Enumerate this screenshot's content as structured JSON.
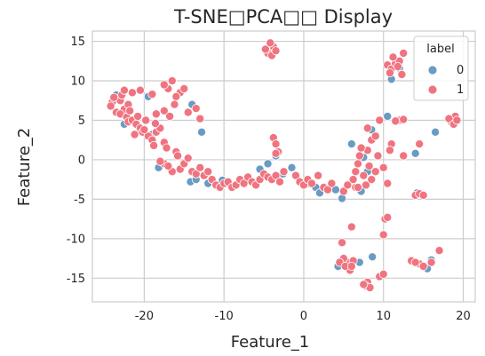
{
  "chart_data": {
    "type": "scatter",
    "title": "T-SNE□PCA□□ Display",
    "xlabel": "Feature_1",
    "ylabel": "Feature_2",
    "xlim": [
      -26.5,
      21.5
    ],
    "ylim": [
      -18,
      16.3
    ],
    "xticks": [
      -20,
      -10,
      0,
      10,
      20
    ],
    "yticks": [
      -15,
      -10,
      -5,
      0,
      5,
      10,
      15
    ],
    "grid": true,
    "legend": {
      "title": "label",
      "position": "top-right",
      "entries": [
        "0",
        "1"
      ]
    },
    "colors": {
      "0": "#6a9bc3",
      "1": "#f07480",
      "grid": "#cccccc",
      "frame": "#cccccc"
    },
    "series": [
      {
        "name": "0",
        "points": [
          [
            -23.5,
            8.2
          ],
          [
            -22.5,
            4.5
          ],
          [
            -19.5,
            8.0
          ],
          [
            -19.0,
            3.2
          ],
          [
            -14.0,
            7.0
          ],
          [
            -12.8,
            3.5
          ],
          [
            -14.2,
            -2.8
          ],
          [
            -12.0,
            -3.0
          ],
          [
            -10.2,
            -2.6
          ],
          [
            -7.6,
            -2.9
          ],
          [
            -5.5,
            -1.2
          ],
          [
            -4.5,
            -0.5
          ],
          [
            -3.5,
            0.5
          ],
          [
            -2.6,
            -1.8
          ],
          [
            -1.5,
            -1.0
          ],
          [
            0.5,
            -3.0
          ],
          [
            1.5,
            -3.5
          ],
          [
            2.0,
            -4.2
          ],
          [
            4.0,
            -3.8
          ],
          [
            4.8,
            -4.9
          ],
          [
            6.0,
            2.0
          ],
          [
            7.5,
            0.3
          ],
          [
            8.0,
            -1.5
          ],
          [
            8.5,
            3.8
          ],
          [
            10.5,
            5.5
          ],
          [
            7.2,
            -4.0
          ],
          [
            8.6,
            -12.3
          ],
          [
            7.0,
            -13.0
          ],
          [
            4.3,
            -13.5
          ],
          [
            16.0,
            -12.7
          ],
          [
            15.5,
            -13.8
          ],
          [
            14.2,
            -4.2
          ],
          [
            14.0,
            0.8
          ],
          [
            16.5,
            3.5
          ],
          [
            12.0,
            11.6
          ],
          [
            18.8,
            5.0
          ],
          [
            11.0,
            10.2
          ],
          [
            -4.0,
            14.0
          ],
          [
            -18.2,
            -1.0
          ],
          [
            -13.5,
            -2.5
          ]
        ]
      },
      {
        "name": "1",
        "points": [
          [
            -24.0,
            7.3
          ],
          [
            -23.5,
            6.0
          ],
          [
            -23.0,
            7.5
          ],
          [
            -22.5,
            6.4
          ],
          [
            -22.8,
            8.2
          ],
          [
            -22.0,
            7.0
          ],
          [
            -21.5,
            8.5
          ],
          [
            -24.2,
            6.8
          ],
          [
            -23.0,
            5.8
          ],
          [
            -22.2,
            5.4
          ],
          [
            -22.5,
            8.8
          ],
          [
            -23.8,
            7.9
          ],
          [
            -21.8,
            6.2
          ],
          [
            -22.0,
            4.8
          ],
          [
            -21.5,
            5.0
          ],
          [
            -21.0,
            4.5
          ],
          [
            -20.5,
            4.0
          ],
          [
            -20.2,
            3.5
          ],
          [
            -19.5,
            3.0
          ],
          [
            -19.0,
            2.5
          ],
          [
            -18.5,
            3.5
          ],
          [
            -18.0,
            4.0
          ],
          [
            -18.8,
            1.8
          ],
          [
            -17.5,
            2.2
          ],
          [
            -20.5,
            8.8
          ],
          [
            -19.0,
            8.3
          ],
          [
            -17.2,
            1.5
          ],
          [
            -16.0,
            1.0
          ],
          [
            -16.5,
            -1.5
          ],
          [
            -17.5,
            -0.5
          ],
          [
            -18.0,
            -0.2
          ],
          [
            -17.0,
            -0.8
          ],
          [
            -15.5,
            -1.2
          ],
          [
            -15.0,
            -0.5
          ],
          [
            -14.5,
            0.2
          ],
          [
            -15.8,
            0.5
          ],
          [
            -14.0,
            -1.5
          ],
          [
            -13.5,
            -1.8
          ],
          [
            -13.0,
            -1.0
          ],
          [
            -12.5,
            -2.0
          ],
          [
            -12.0,
            -1.5
          ],
          [
            -11.5,
            -2.5
          ],
          [
            -11.0,
            -3.2
          ],
          [
            -10.5,
            -3.5
          ],
          [
            -10.0,
            -3.0
          ],
          [
            -9.5,
            -2.8
          ],
          [
            -9.0,
            -3.5
          ],
          [
            -8.5,
            -3.2
          ],
          [
            -8.0,
            -2.5
          ],
          [
            -7.5,
            -3.0
          ],
          [
            -7.0,
            -2.2
          ],
          [
            -6.5,
            -2.8
          ],
          [
            -6.0,
            -3.2
          ],
          [
            -5.5,
            -2.5
          ],
          [
            -5.0,
            -1.8
          ],
          [
            -4.5,
            -2.2
          ],
          [
            -4.0,
            -2.5
          ],
          [
            -3.5,
            -2.0
          ],
          [
            -3.0,
            -2.8
          ],
          [
            -2.5,
            -1.5
          ],
          [
            -3.8,
            2.8
          ],
          [
            -3.5,
            2.0
          ],
          [
            -3.2,
            1.0
          ],
          [
            -3.5,
            0.8
          ],
          [
            -1.0,
            -2.0
          ],
          [
            -0.5,
            -2.8
          ],
          [
            0.0,
            -3.2
          ],
          [
            0.5,
            -2.5
          ],
          [
            1.0,
            -3.0
          ],
          [
            1.8,
            -2.0
          ],
          [
            2.5,
            -3.5
          ],
          [
            3.0,
            -3.8
          ],
          [
            3.5,
            -3.0
          ],
          [
            5.0,
            -4.0
          ],
          [
            5.5,
            -3.2
          ],
          [
            6.5,
            -1.5
          ],
          [
            6.8,
            -0.5
          ],
          [
            7.0,
            0.5
          ],
          [
            6.2,
            -2.5
          ],
          [
            6.5,
            -3.5
          ],
          [
            7.5,
            -2.0
          ],
          [
            7.8,
            -3.2
          ],
          [
            8.2,
            -0.8
          ],
          [
            8.5,
            -2.5
          ],
          [
            9.0,
            -1.5
          ],
          [
            8.0,
            1.2
          ],
          [
            8.5,
            2.5
          ],
          [
            9.0,
            3.0
          ],
          [
            8.0,
            4.0
          ],
          [
            9.5,
            5.0
          ],
          [
            9.3,
            0.5
          ],
          [
            7.2,
            1.5
          ],
          [
            10.0,
            -1.0
          ],
          [
            10.5,
            -3.0
          ],
          [
            10.2,
            -7.5
          ],
          [
            10.0,
            -9.5
          ],
          [
            9.5,
            -14.8
          ],
          [
            10.0,
            -14.5
          ],
          [
            8.0,
            -15.5
          ],
          [
            7.8,
            -16.0
          ],
          [
            8.3,
            -16.2
          ],
          [
            7.5,
            -15.8
          ],
          [
            5.5,
            -13.0
          ],
          [
            5.8,
            -14.0
          ],
          [
            5.0,
            -12.5
          ],
          [
            6.2,
            -12.8
          ],
          [
            4.5,
            -13.0
          ],
          [
            5.2,
            -13.5
          ],
          [
            6.0,
            -13.5
          ],
          [
            4.8,
            -10.5
          ],
          [
            6.0,
            -8.5
          ],
          [
            -15.5,
            8.5
          ],
          [
            -16.0,
            8.0
          ],
          [
            -17.0,
            9.0
          ],
          [
            -17.5,
            9.5
          ],
          [
            -16.5,
            10.0
          ],
          [
            -15.0,
            9.0
          ],
          [
            -16.2,
            7.0
          ],
          [
            -17.5,
            6.2
          ],
          [
            -16.8,
            5.5
          ],
          [
            -18.5,
            5.8
          ],
          [
            -14.5,
            6.0
          ],
          [
            -13.0,
            5.2
          ],
          [
            -13.5,
            6.5
          ],
          [
            10.5,
            12.0
          ],
          [
            11.0,
            11.5
          ],
          [
            11.5,
            12.2
          ],
          [
            12.0,
            12.5
          ],
          [
            11.2,
            13.0
          ],
          [
            12.5,
            13.5
          ],
          [
            10.8,
            11.0
          ],
          [
            11.8,
            11.8
          ],
          [
            12.3,
            10.8
          ],
          [
            12.0,
            5.0
          ],
          [
            12.5,
            5.1
          ],
          [
            11.5,
            4.9
          ],
          [
            14.0,
            -4.5
          ],
          [
            14.5,
            -4.3
          ],
          [
            15.0,
            -4.5
          ],
          [
            14.5,
            2.0
          ],
          [
            11.0,
            2.0
          ],
          [
            10.8,
            1.2
          ],
          [
            12.5,
            0.5
          ],
          [
            10.5,
            -7.3
          ],
          [
            13.5,
            -12.8
          ],
          [
            14.5,
            -13.2
          ],
          [
            15.0,
            -13.5
          ],
          [
            16.0,
            -13.0
          ],
          [
            17.0,
            -11.5
          ],
          [
            14.0,
            -13.0
          ],
          [
            18.5,
            4.8
          ],
          [
            19.0,
            5.5
          ],
          [
            18.2,
            5.2
          ],
          [
            18.8,
            4.5
          ],
          [
            19.2,
            5.0
          ],
          [
            -4.2,
            14.0
          ],
          [
            -4.5,
            13.5
          ],
          [
            -3.8,
            14.3
          ],
          [
            -4.0,
            13.2
          ],
          [
            -4.8,
            14.0
          ],
          [
            -3.5,
            13.8
          ],
          [
            -4.2,
            14.8
          ],
          [
            6.8,
            -3.5
          ],
          [
            -20.8,
            5.5
          ],
          [
            -20.0,
            3.8
          ],
          [
            -19.8,
            5.0
          ],
          [
            -21.2,
            3.2
          ],
          [
            -18.6,
            4.6
          ]
        ]
      }
    ]
  }
}
